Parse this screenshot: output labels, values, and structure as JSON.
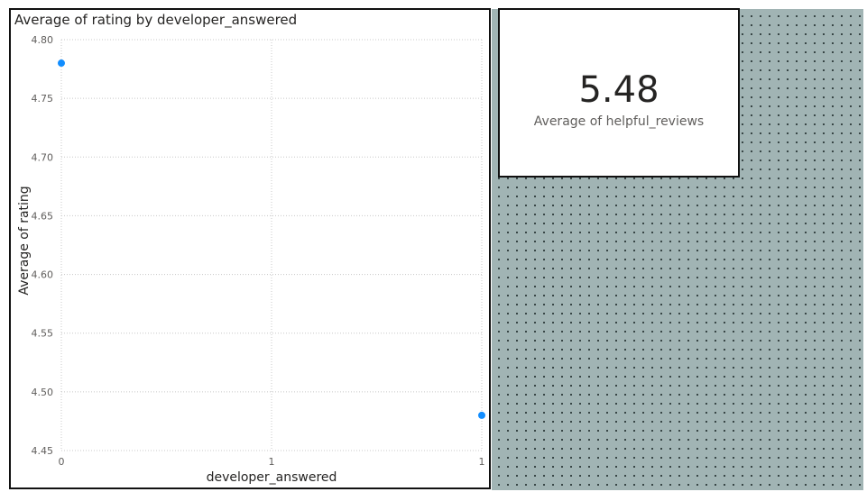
{
  "chart": {
    "title": "Average of rating by developer_answered"
  },
  "chart_data": {
    "type": "scatter",
    "title": "Average of rating by developer_answered",
    "xlabel": "developer_answered",
    "ylabel": "Average of rating",
    "x_ticks": [
      "0",
      "1",
      "1"
    ],
    "y_ticks": [
      "4.80",
      "4.75",
      "4.70",
      "4.65",
      "4.60",
      "4.55",
      "4.50",
      "4.45"
    ],
    "xlim": [
      0,
      1
    ],
    "ylim": [
      4.45,
      4.8
    ],
    "grid": true,
    "color": "#118dff",
    "points": [
      {
        "x": 0,
        "y": 4.78
      },
      {
        "x": 1,
        "y": 4.48
      }
    ]
  },
  "kpi": {
    "value": "5.48",
    "label": "Average of helpful_reviews"
  }
}
